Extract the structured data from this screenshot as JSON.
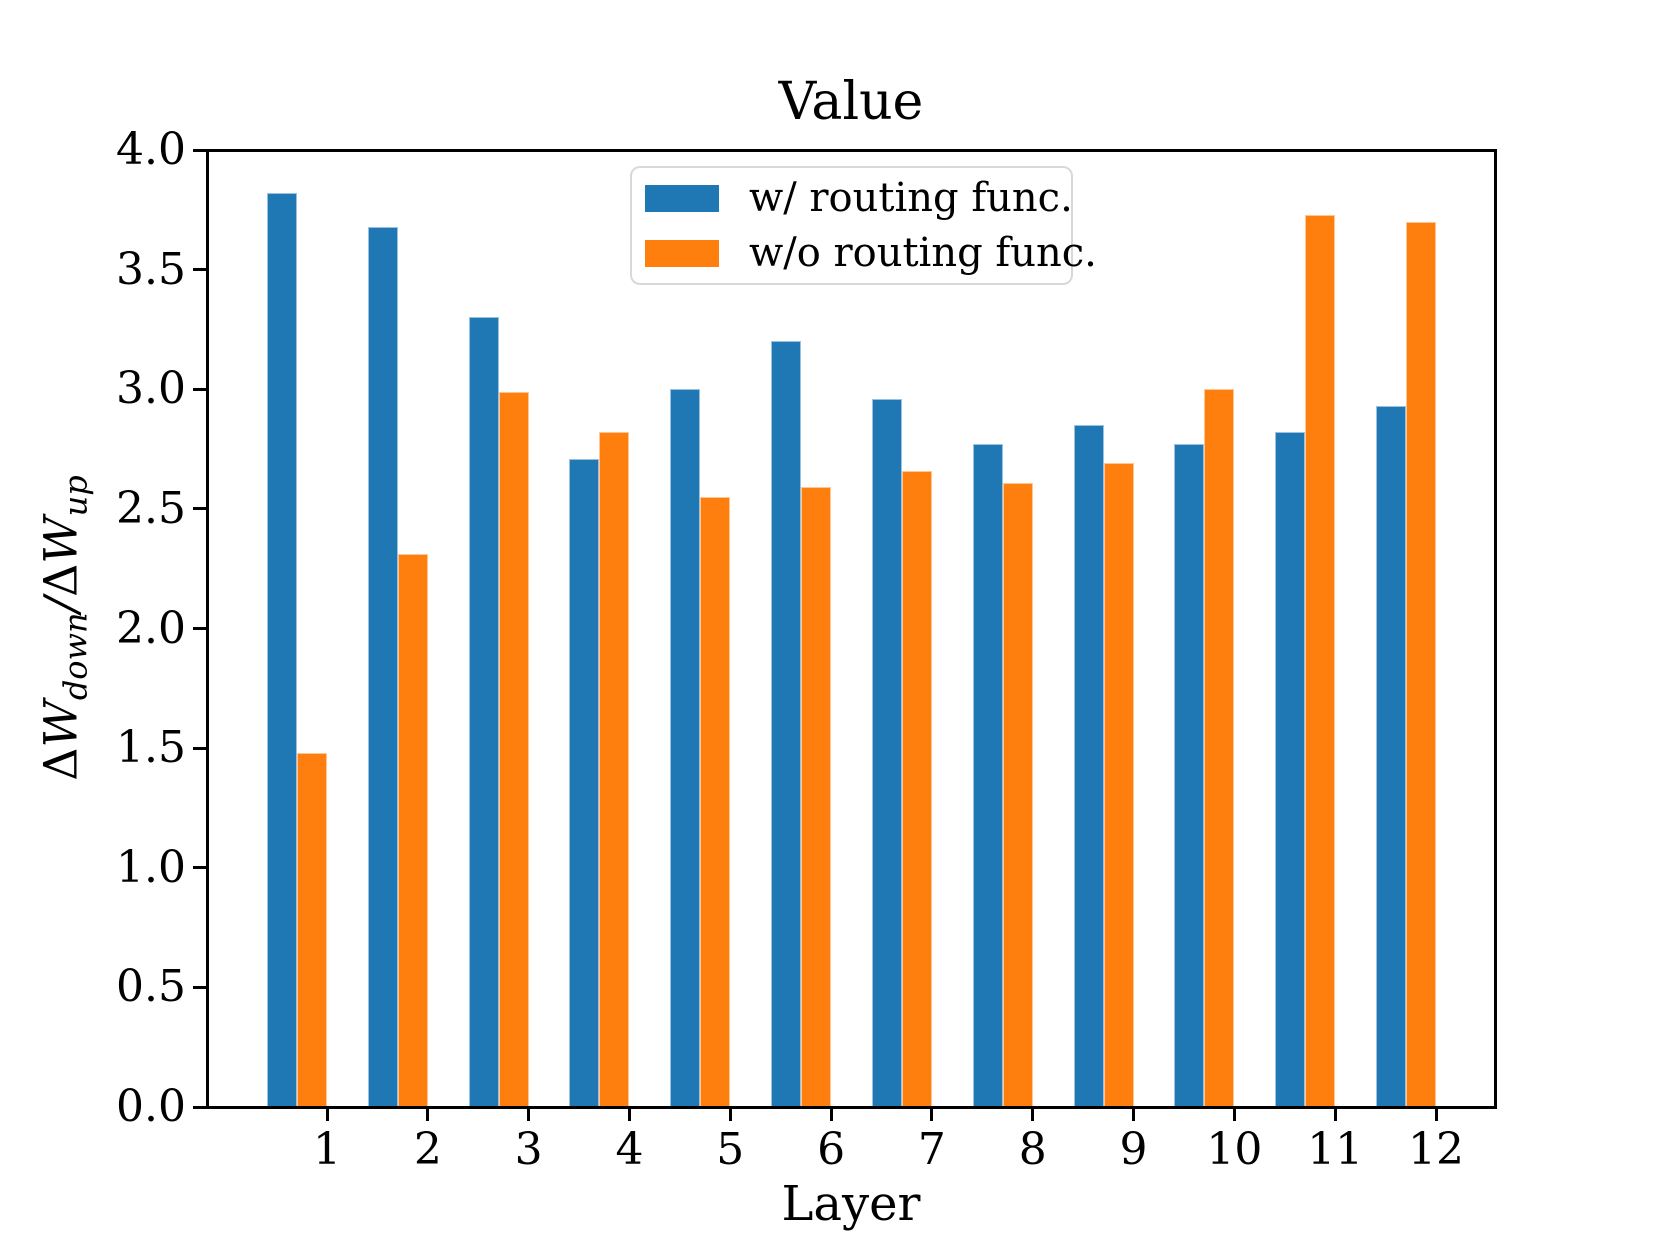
{
  "ylabel_rich": {
    "delta1": "Δ",
    "w1": "W",
    "sub1": "down",
    "slash": "/",
    "delta2": "Δ",
    "w2": "W",
    "sub2": "up"
  },
  "chart_data": {
    "type": "bar",
    "title": "Value",
    "xlabel": "Layer",
    "ylabel": "ΔW_down/ΔW_up",
    "categories": [
      "1",
      "2",
      "3",
      "4",
      "5",
      "6",
      "7",
      "8",
      "9",
      "10",
      "11",
      "12"
    ],
    "series": [
      {
        "name": "w/ routing func.",
        "color": "#1f77b4",
        "values": [
          3.82,
          3.68,
          3.3,
          2.71,
          3.0,
          3.2,
          2.96,
          2.77,
          2.85,
          2.77,
          2.82,
          2.93
        ]
      },
      {
        "name": "w/o routing func.",
        "color": "#ff7f0e",
        "values": [
          1.48,
          2.31,
          2.99,
          2.82,
          2.55,
          2.59,
          2.66,
          2.61,
          2.69,
          3.0,
          3.73,
          3.7
        ]
      }
    ],
    "ylim": [
      0.0,
      4.0
    ],
    "yticks": [
      "0.0",
      "0.5",
      "1.0",
      "1.5",
      "2.0",
      "2.5",
      "3.0",
      "3.5",
      "4.0"
    ],
    "grid": false,
    "legend_position": "upper center",
    "bar_layout": "each pair (blue then orange) adjacent, pair right edge aligned with x tick"
  }
}
